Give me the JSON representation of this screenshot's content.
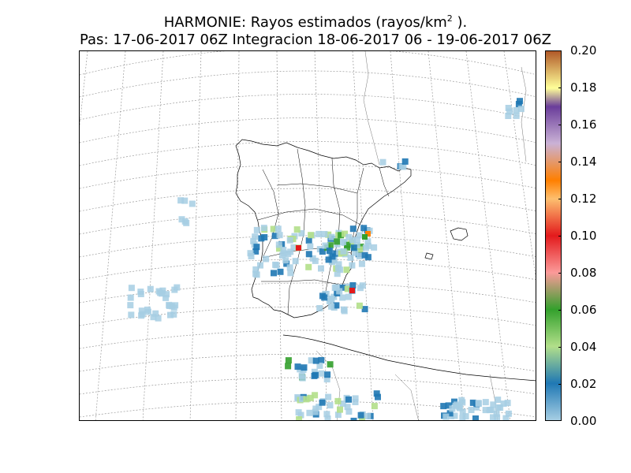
{
  "header": {
    "title_main": "HARMONIE: Rayos estimados  (rayos/km",
    "title_sup": "2",
    "title_end": " ).",
    "subtitle": "Pas: 17-06-2017 06Z Integracion 18-06-2017 06 - 19-06-2017 06Z"
  },
  "colorbar": {
    "min": 0,
    "max": 0.2,
    "ticks": [
      "0.00",
      "0.02",
      "0.04",
      "0.06",
      "0.08",
      "0.10",
      "0.12",
      "0.14",
      "0.16",
      "0.18",
      "0.20"
    ],
    "stops": [
      {
        "v": 0.0,
        "c": "#a6cee3"
      },
      {
        "v": 0.02,
        "c": "#1f78b4"
      },
      {
        "v": 0.04,
        "c": "#b2df8a"
      },
      {
        "v": 0.06,
        "c": "#33a02c"
      },
      {
        "v": 0.08,
        "c": "#fb9a99"
      },
      {
        "v": 0.1,
        "c": "#e31a1c"
      },
      {
        "v": 0.12,
        "c": "#fdbf6f"
      },
      {
        "v": 0.13,
        "c": "#ff7f00"
      },
      {
        "v": 0.15,
        "c": "#cab2d6"
      },
      {
        "v": 0.17,
        "c": "#6a3d9a"
      },
      {
        "v": 0.18,
        "c": "#ffff99"
      },
      {
        "v": 0.2,
        "c": "#b15928"
      }
    ]
  },
  "map": {
    "region": "Iberian Peninsula",
    "features": [
      "coastlines",
      "province-borders",
      "lat-lon-graticule",
      "lightning-density-grid"
    ]
  }
}
